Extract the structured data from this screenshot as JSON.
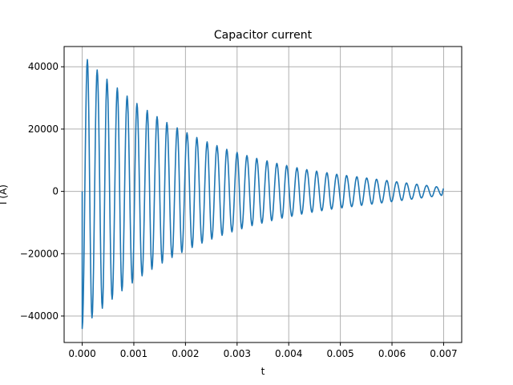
{
  "chart_data": {
    "type": "line",
    "title": "Capacitor current",
    "xlabel": "t",
    "ylabel": "I (A)",
    "xlim": [
      -0.00035,
      0.00735
    ],
    "ylim": [
      -48500,
      46500
    ],
    "xticks": [
      0.0,
      0.001,
      0.002,
      0.003,
      0.004,
      0.005,
      0.006,
      0.007
    ],
    "xtick_labels": [
      "0.000",
      "0.001",
      "0.002",
      "0.003",
      "0.004",
      "0.005",
      "0.006",
      "0.007"
    ],
    "yticks": [
      -40000,
      -20000,
      0,
      20000,
      40000
    ],
    "ytick_labels": [
      "−40000",
      "−20000",
      "0",
      "20000",
      "40000"
    ],
    "grid": true,
    "colors": {
      "line": "#1f77b4",
      "grid": "#b0b0b0",
      "axes": "#000000"
    },
    "series": [
      {
        "description": "Damped oscillation sampled at half-cycle peaks",
        "x": [
          0.0,
          0.0,
          0.0001,
          0.00019,
          0.00029,
          0.00039,
          0.00048,
          0.00058,
          0.00068,
          0.00077,
          0.00087,
          0.00097,
          0.00106,
          0.00116,
          0.00126,
          0.00135,
          0.00145,
          0.00155,
          0.00164,
          0.00174,
          0.00184,
          0.00193,
          0.00203,
          0.00213,
          0.00222,
          0.00232,
          0.00242,
          0.00251,
          0.00261,
          0.00271,
          0.0028,
          0.0029,
          0.003,
          0.00309,
          0.00319,
          0.00329,
          0.00338,
          0.00348,
          0.00358,
          0.00367,
          0.00377,
          0.00387,
          0.00396,
          0.00406,
          0.00416,
          0.00425,
          0.00435,
          0.00445,
          0.00454,
          0.00464,
          0.00474,
          0.00483,
          0.00493,
          0.00503,
          0.00512,
          0.00522,
          0.00532,
          0.00541,
          0.00551,
          0.00561,
          0.0057,
          0.0058,
          0.0059,
          0.00599,
          0.00609,
          0.00619,
          0.00628,
          0.00638,
          0.00648,
          0.00657,
          0.00667,
          0.00677,
          0.00686,
          0.00696,
          0.007
        ],
        "y": [
          0,
          -44000,
          42300,
          -40600,
          39000,
          -37500,
          36000,
          -34600,
          33200,
          -31900,
          30600,
          -29400,
          28200,
          -27100,
          26000,
          -25000,
          24000,
          -23000,
          22100,
          -21200,
          20400,
          -19600,
          18800,
          -18000,
          17300,
          -16600,
          15900,
          -15300,
          14700,
          -14100,
          13500,
          -13000,
          12500,
          -12000,
          11500,
          -11000,
          10600,
          -10200,
          9800,
          -9400,
          9000,
          -8600,
          8300,
          -8000,
          7600,
          -7300,
          7000,
          -6700,
          6500,
          -6200,
          6000,
          -5700,
          5500,
          -5300,
          5100,
          -4900,
          4700,
          -4500,
          4300,
          -4100,
          3900,
          -3700,
          3500,
          -3300,
          3100,
          -2900,
          2700,
          -2500,
          2300,
          -2100,
          1900,
          -1700,
          1500,
          -1300,
          900
        ]
      }
    ]
  }
}
